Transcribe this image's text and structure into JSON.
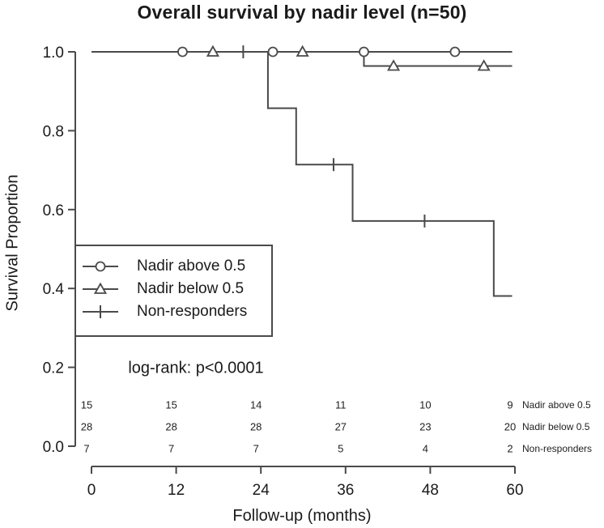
{
  "chart_data": {
    "type": "line",
    "step": true,
    "title": "Overall survival by nadir level (n=50)",
    "xlabel": "Follow-up (months)",
    "ylabel": "Survival Proportion",
    "xlim": [
      0,
      60
    ],
    "ylim": [
      0.0,
      1.0
    ],
    "x_ticks": [
      0,
      12,
      24,
      36,
      48,
      60
    ],
    "y_ticks": [
      1.0,
      0.8,
      0.6,
      0.4,
      0.2,
      0.0
    ],
    "grid": false,
    "legend_position": "left-middle",
    "annotation": "log-rank: p<0.0001",
    "line_color": "#4a4a4a",
    "series": [
      {
        "name": "Nadir above 0.5",
        "marker": "circle",
        "step_points": [
          [
            0,
            1.0
          ],
          [
            59.6,
            1.0
          ]
        ],
        "censor_marks": [
          [
            12.9,
            1.0
          ],
          [
            25.7,
            1.0
          ],
          [
            38.6,
            1.0
          ],
          [
            51.5,
            1.0
          ]
        ]
      },
      {
        "name": "Nadir below 0.5",
        "marker": "triangle",
        "step_points": [
          [
            0,
            1.0
          ],
          [
            38.6,
            1.0
          ],
          [
            38.6,
            0.964
          ],
          [
            59.6,
            0.964
          ]
        ],
        "censor_marks": [
          [
            17.2,
            1.0
          ],
          [
            29.9,
            1.0
          ],
          [
            42.8,
            0.964
          ],
          [
            55.6,
            0.964
          ]
        ]
      },
      {
        "name": "Non-responders",
        "marker": "tick",
        "step_points": [
          [
            0,
            1.0
          ],
          [
            25,
            1.0
          ],
          [
            25,
            0.857
          ],
          [
            29,
            0.857
          ],
          [
            29,
            0.714
          ],
          [
            37,
            0.714
          ],
          [
            37,
            0.571
          ],
          [
            57,
            0.571
          ],
          [
            57,
            0.381
          ],
          [
            59.6,
            0.381
          ]
        ],
        "censor_marks": [
          [
            21.5,
            1.0
          ],
          [
            34.3,
            0.714
          ],
          [
            47.2,
            0.571
          ]
        ]
      }
    ],
    "risk_table": {
      "columns_months": [
        0,
        12,
        24,
        36,
        48,
        60
      ],
      "rows": [
        {
          "label": "Nadir above 0.5",
          "counts": [
            15,
            15,
            14,
            11,
            10,
            9
          ]
        },
        {
          "label": "Nadir below 0.5",
          "counts": [
            28,
            28,
            28,
            27,
            23,
            20
          ]
        },
        {
          "label": "Non-responders",
          "counts": [
            7,
            7,
            7,
            5,
            4,
            2
          ]
        }
      ]
    }
  }
}
